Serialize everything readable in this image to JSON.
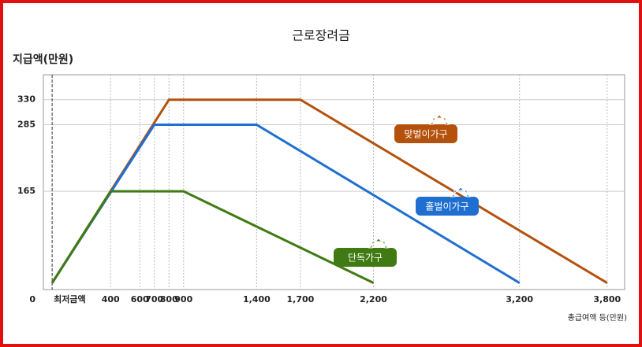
{
  "chart_data": {
    "type": "line",
    "title": "근로장려금",
    "y_label": "지급액(만원)",
    "x_label": "총급여액 등(만원)",
    "xlim": [
      -60,
      3920
    ],
    "ylim": [
      -12,
      375
    ],
    "xticks": [
      {
        "value": 0,
        "label": "최저금액"
      },
      400,
      600,
      700,
      800,
      900,
      {
        "value": 1400,
        "label": "1,400"
      },
      {
        "value": 1700,
        "label": "1,700"
      },
      {
        "value": 2200,
        "label": "2,200"
      },
      {
        "value": 3200,
        "label": "3,200"
      },
      {
        "value": 3800,
        "label": "3,800"
      }
    ],
    "yticks": [
      0,
      165,
      285,
      330
    ],
    "grid": true,
    "series": [
      {
        "name": "맞벌이가구",
        "color": "#b4510c",
        "x": [
          0,
          800,
          1700,
          3800
        ],
        "values": [
          0,
          330,
          330,
          0
        ]
      },
      {
        "name": "홑벌이가구",
        "color": "#1f6fd1",
        "x": [
          0,
          700,
          1400,
          3200
        ],
        "values": [
          0,
          285,
          285,
          0
        ]
      },
      {
        "name": "단독가구",
        "color": "#3f7b12",
        "x": [
          0,
          400,
          900,
          2200
        ],
        "values": [
          0,
          165,
          165,
          0
        ]
      }
    ]
  }
}
